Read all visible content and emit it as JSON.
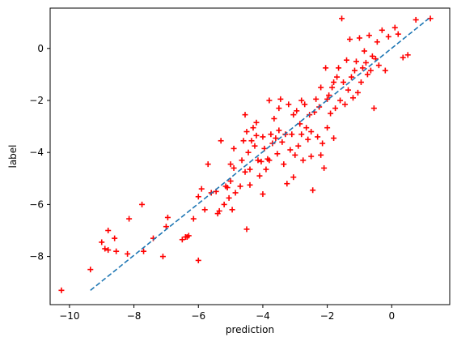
{
  "chart_data": {
    "type": "scatter",
    "xlabel": "prediction",
    "ylabel": "label",
    "xlim": [
      -10.6,
      1.8
    ],
    "ylim": [
      -9.85,
      1.55
    ],
    "xticks": [
      -10,
      -8,
      -6,
      -4,
      -2,
      0
    ],
    "yticks": [
      -8,
      -6,
      -4,
      -2,
      0
    ],
    "grid": false,
    "colors": {
      "points": "#ff0000",
      "line": "#1f77b4"
    },
    "reference_line": {
      "style": "dashed",
      "x": [
        -9.35,
        1.15
      ],
      "y": [
        -9.3,
        1.15
      ]
    },
    "series": [
      {
        "marker": "plus",
        "points": [
          [
            -10.25,
            -9.3
          ],
          [
            -9.35,
            -8.5
          ],
          [
            -9.0,
            -7.45
          ],
          [
            -8.9,
            -7.7
          ],
          [
            -8.8,
            -7.0
          ],
          [
            -8.6,
            -7.3
          ],
          [
            -8.55,
            -7.8
          ],
          [
            -8.2,
            -7.9
          ],
          [
            -8.15,
            -6.55
          ],
          [
            -7.75,
            -6.0
          ],
          [
            -7.7,
            -7.8
          ],
          [
            -7.4,
            -7.3
          ],
          [
            -7.1,
            -8.0
          ],
          [
            -7.0,
            -6.85
          ],
          [
            -6.95,
            -6.5
          ],
          [
            -6.5,
            -7.35
          ],
          [
            -6.35,
            -7.25
          ],
          [
            -6.3,
            -7.2
          ],
          [
            -6.15,
            -6.55
          ],
          [
            -6.0,
            -8.15
          ],
          [
            -6.0,
            -5.7
          ],
          [
            -5.9,
            -5.4
          ],
          [
            -5.8,
            -6.2
          ],
          [
            -5.7,
            -4.45
          ],
          [
            -5.6,
            -5.55
          ],
          [
            -5.45,
            -5.5
          ],
          [
            -5.4,
            -6.35
          ],
          [
            -5.35,
            -6.25
          ],
          [
            -5.3,
            -3.55
          ],
          [
            -5.2,
            -6.0
          ],
          [
            -5.15,
            -5.3
          ],
          [
            -5.05,
            -5.75
          ],
          [
            -5.0,
            -5.1
          ],
          [
            -5.0,
            -4.45
          ],
          [
            -4.95,
            -6.2
          ],
          [
            -4.9,
            -4.6
          ],
          [
            -4.9,
            -3.85
          ],
          [
            -4.85,
            -5.55
          ],
          [
            -4.7,
            -5.3
          ],
          [
            -4.65,
            -4.3
          ],
          [
            -4.6,
            -3.55
          ],
          [
            -4.55,
            -4.75
          ],
          [
            -4.55,
            -2.55
          ],
          [
            -4.5,
            -3.2
          ],
          [
            -4.45,
            -4.0
          ],
          [
            -4.4,
            -4.65
          ],
          [
            -4.35,
            -3.55
          ],
          [
            -4.3,
            -3.05
          ],
          [
            -4.25,
            -3.75
          ],
          [
            -4.2,
            -3.35
          ],
          [
            -4.2,
            -2.85
          ],
          [
            -4.15,
            -4.3
          ],
          [
            -4.1,
            -4.9
          ],
          [
            -4.05,
            -4.35
          ],
          [
            -4.0,
            -5.6
          ],
          [
            -4.0,
            -3.4
          ],
          [
            -3.95,
            -3.85
          ],
          [
            -3.9,
            -4.65
          ],
          [
            -3.85,
            -4.25
          ],
          [
            -3.8,
            -4.3
          ],
          [
            -3.75,
            -3.3
          ],
          [
            -3.7,
            -3.65
          ],
          [
            -3.65,
            -2.7
          ],
          [
            -3.6,
            -3.45
          ],
          [
            -3.55,
            -4.05
          ],
          [
            -3.5,
            -3.15
          ],
          [
            -3.5,
            -2.3
          ],
          [
            -3.45,
            -1.95
          ],
          [
            -3.4,
            -3.6
          ],
          [
            -3.35,
            -4.45
          ],
          [
            -3.3,
            -3.3
          ],
          [
            -3.25,
            -5.2
          ],
          [
            -3.2,
            -2.15
          ],
          [
            -3.15,
            -3.9
          ],
          [
            -3.1,
            -3.3
          ],
          [
            -3.05,
            -2.55
          ],
          [
            -3.05,
            -4.95
          ],
          [
            -3.0,
            -4.1
          ],
          [
            -2.95,
            -2.4
          ],
          [
            -2.9,
            -3.75
          ],
          [
            -2.85,
            -2.9
          ],
          [
            -2.8,
            -2.0
          ],
          [
            -2.8,
            -3.3
          ],
          [
            -2.75,
            -4.3
          ],
          [
            -2.7,
            -2.15
          ],
          [
            -2.65,
            -3.05
          ],
          [
            -2.6,
            -3.5
          ],
          [
            -2.55,
            -2.55
          ],
          [
            -2.5,
            -3.2
          ],
          [
            -2.5,
            -4.15
          ],
          [
            -2.45,
            -5.45
          ],
          [
            -2.4,
            -2.45
          ],
          [
            -2.35,
            -1.95
          ],
          [
            -2.3,
            -3.4
          ],
          [
            -2.25,
            -2.25
          ],
          [
            -2.2,
            -4.1
          ],
          [
            -2.15,
            -3.65
          ],
          [
            -2.1,
            -4.6
          ],
          [
            -2.05,
            -0.75
          ],
          [
            -2.0,
            -3.05
          ],
          [
            -1.95,
            -1.8
          ],
          [
            -1.9,
            -2.5
          ],
          [
            -1.85,
            -1.5
          ],
          [
            -1.8,
            -3.45
          ],
          [
            -1.75,
            -2.3
          ],
          [
            -1.7,
            -1.1
          ],
          [
            -1.65,
            -0.75
          ],
          [
            -1.6,
            -2.0
          ],
          [
            -1.55,
            1.15
          ],
          [
            -1.5,
            -1.3
          ],
          [
            -1.45,
            -2.15
          ],
          [
            -1.4,
            -0.45
          ],
          [
            -1.35,
            -1.6
          ],
          [
            -1.3,
            0.35
          ],
          [
            -1.25,
            -1.1
          ],
          [
            -1.2,
            -1.9
          ],
          [
            -1.15,
            -0.85
          ],
          [
            -1.1,
            -0.5
          ],
          [
            -1.05,
            -1.7
          ],
          [
            -1.0,
            0.4
          ],
          [
            -0.95,
            -1.3
          ],
          [
            -0.9,
            -0.75
          ],
          [
            -0.85,
            -0.1
          ],
          [
            -0.8,
            -0.55
          ],
          [
            -0.75,
            -1.0
          ],
          [
            -0.7,
            0.5
          ],
          [
            -0.65,
            -0.85
          ],
          [
            -0.6,
            -0.3
          ],
          [
            -0.55,
            -2.3
          ],
          [
            -0.5,
            -0.4
          ],
          [
            -0.45,
            0.25
          ],
          [
            -0.4,
            -0.65
          ],
          [
            -0.3,
            0.7
          ],
          [
            -0.2,
            -0.85
          ],
          [
            -0.1,
            0.45
          ],
          [
            0.1,
            0.8
          ],
          [
            0.2,
            0.55
          ],
          [
            0.35,
            -0.35
          ],
          [
            0.5,
            -0.25
          ],
          [
            0.75,
            1.1
          ],
          [
            1.2,
            1.15
          ],
          [
            -2.2,
            -1.5
          ],
          [
            -2.0,
            -1.95
          ],
          [
            -1.8,
            -1.3
          ],
          [
            -3.8,
            -2.0
          ],
          [
            -4.4,
            -5.25
          ],
          [
            -4.5,
            -6.95
          ],
          [
            -5.1,
            -5.35
          ],
          [
            -6.4,
            -7.25
          ],
          [
            -8.8,
            -7.75
          ]
        ]
      }
    ]
  }
}
